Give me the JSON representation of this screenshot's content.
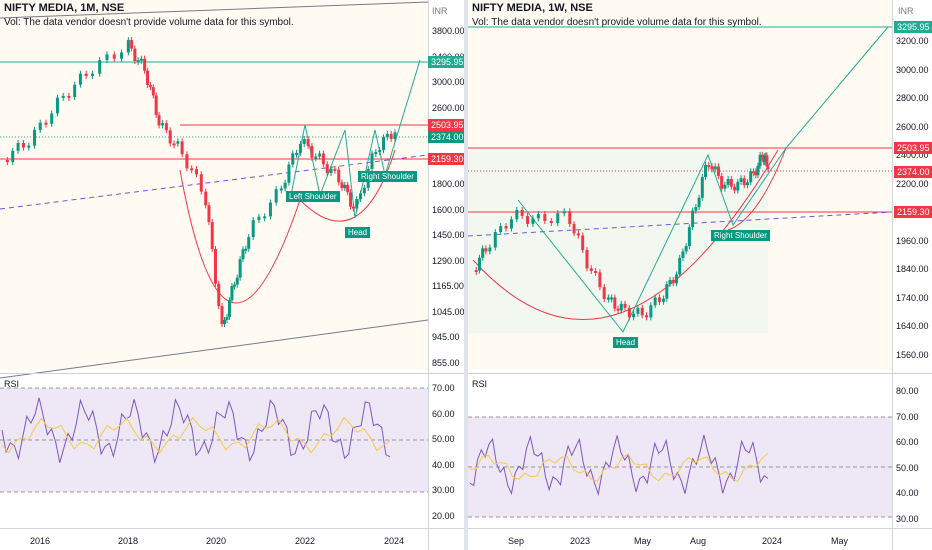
{
  "left_chart": {
    "title": "NIFTY MEDIA, 1M, NSE",
    "vol_note": "Vol: The data vendor doesn't provide volume data for this symbol.",
    "currency": "INR",
    "price_ticks": [
      "3800.00",
      "3400.00",
      "3000.00",
      "2600.00",
      "2300.00",
      "2000.00",
      "1800.00",
      "1600.00",
      "1450.00",
      "1290.00",
      "1165.00",
      "1045.00",
      "945.00",
      "855.00"
    ],
    "price_labels": {
      "top": "3295.95",
      "resistance": "2503.95",
      "last": "2374.00",
      "support": "2159.30"
    },
    "annotations": {
      "left_shoulder": "Left Shoulder",
      "head": "Head",
      "right_shoulder": "Right Shoulder"
    },
    "rsi_label": "RSI",
    "rsi_ticks": [
      "70.00",
      "60.00",
      "50.00",
      "40.00",
      "30.00",
      "20.00"
    ],
    "time_ticks": [
      "2016",
      "2018",
      "2020",
      "2022",
      "2024"
    ]
  },
  "right_chart": {
    "title": "NIFTY MEDIA, 1W, NSE",
    "vol_note": "Vol: The data vendor doesn't provide volume data for this symbol.",
    "currency": "INR",
    "price_ticks": [
      "3200.00",
      "3000.00",
      "2800.00",
      "2600.00",
      "2400.00",
      "2200.00",
      "2080.00",
      "1960.00",
      "1840.00",
      "1740.00",
      "1640.00",
      "1560.00"
    ],
    "price_labels": {
      "top": "3295.95",
      "resistance": "2503.95",
      "last": "2374.00",
      "support": "2159.30"
    },
    "annotations": {
      "head": "Head",
      "right_shoulder": "Right Shoulder"
    },
    "rsi_label": "RSI",
    "rsi_ticks": [
      "80.00",
      "70.00",
      "60.00",
      "50.00",
      "40.00",
      "30.00"
    ],
    "time_ticks": [
      "Sep",
      "2023",
      "May",
      "Aug",
      "2024",
      "May"
    ]
  },
  "colors": {
    "up_candle": "#089981",
    "down_candle": "#f23645",
    "teal_line": "#22ab94",
    "red_line": "#f23645",
    "rsi_line": "#7e57c2",
    "rsi_ma": "#f7c948",
    "rsi_band": "#ede7f6",
    "channel": "#787b86",
    "trend_dash": "#6b5bd6",
    "highlight_zone": "#fff8ea"
  }
}
